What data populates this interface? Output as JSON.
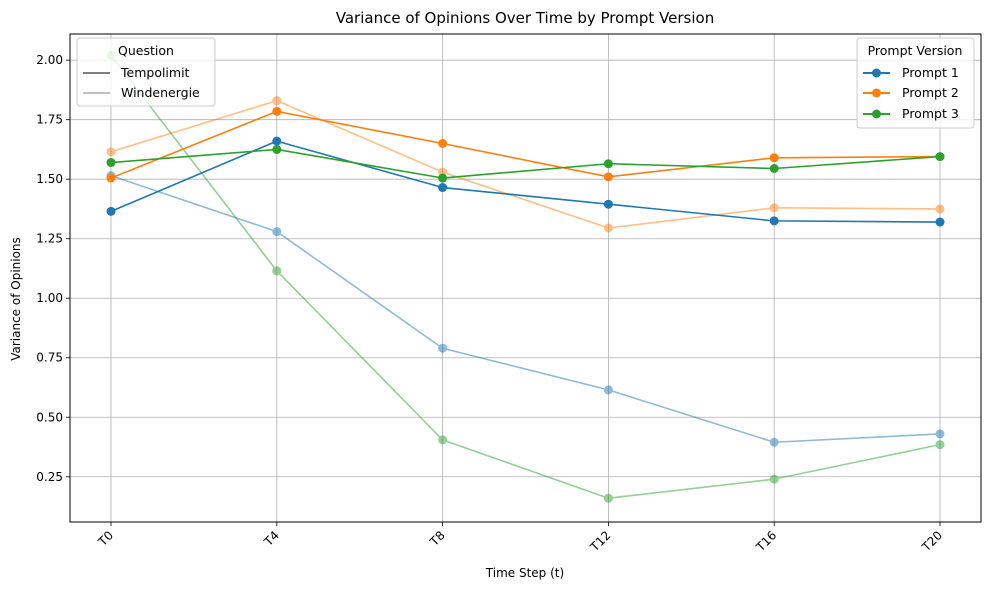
{
  "chart_data": {
    "type": "line",
    "title": "Variance of Opinions Over Time by Prompt Version",
    "xlabel": "Time Step (t)",
    "ylabel": "Variance of Opinions",
    "categories": [
      "T0",
      "T4",
      "T8",
      "T12",
      "T16",
      "T20"
    ],
    "ylim": [
      0.06,
      2.11
    ],
    "yticks": [
      0.25,
      0.5,
      0.75,
      1.0,
      1.25,
      1.5,
      1.75,
      2.0
    ],
    "ytick_labels": [
      "0.25",
      "0.50",
      "0.75",
      "1.00",
      "1.25",
      "1.50",
      "1.75",
      "2.00"
    ],
    "grid": true,
    "series": [
      {
        "name": "Prompt 1",
        "question": "Tempolimit",
        "color": "#1f77b4",
        "values": [
          1.365,
          1.66,
          1.465,
          1.395,
          1.325,
          1.32
        ]
      },
      {
        "name": "Prompt 2",
        "question": "Tempolimit",
        "color": "#ff7f0e",
        "values": [
          1.505,
          1.785,
          1.65,
          1.51,
          1.59,
          1.595
        ]
      },
      {
        "name": "Prompt 3",
        "question": "Tempolimit",
        "color": "#2ca02c",
        "values": [
          1.57,
          1.625,
          1.505,
          1.565,
          1.545,
          1.595
        ]
      },
      {
        "name": "Prompt 1",
        "question": "Windenergie",
        "color": "#1f77b4",
        "values": [
          1.515,
          1.28,
          0.79,
          0.615,
          0.395,
          0.43
        ]
      },
      {
        "name": "Prompt 2",
        "question": "Windenergie",
        "color": "#ff7f0e",
        "values": [
          1.615,
          1.83,
          1.53,
          1.295,
          1.38,
          1.375
        ]
      },
      {
        "name": "Prompt 3",
        "question": "Windenergie",
        "color": "#2ca02c",
        "values": [
          2.02,
          1.115,
          0.405,
          0.16,
          0.24,
          0.385
        ]
      }
    ],
    "legend_question": {
      "title": "Question",
      "placement": "upper-left",
      "items": [
        {
          "label": "Tempolimit",
          "color": "#7f7f7f"
        },
        {
          "label": "Windenergie",
          "color": "#bfbfbf"
        }
      ]
    },
    "legend_prompt": {
      "title": "Prompt Version",
      "placement": "upper-right",
      "items": [
        {
          "label": "Prompt 1",
          "color": "#1f77b4"
        },
        {
          "label": "Prompt 2",
          "color": "#ff7f0e"
        },
        {
          "label": "Prompt 3",
          "color": "#2ca02c"
        }
      ]
    }
  }
}
